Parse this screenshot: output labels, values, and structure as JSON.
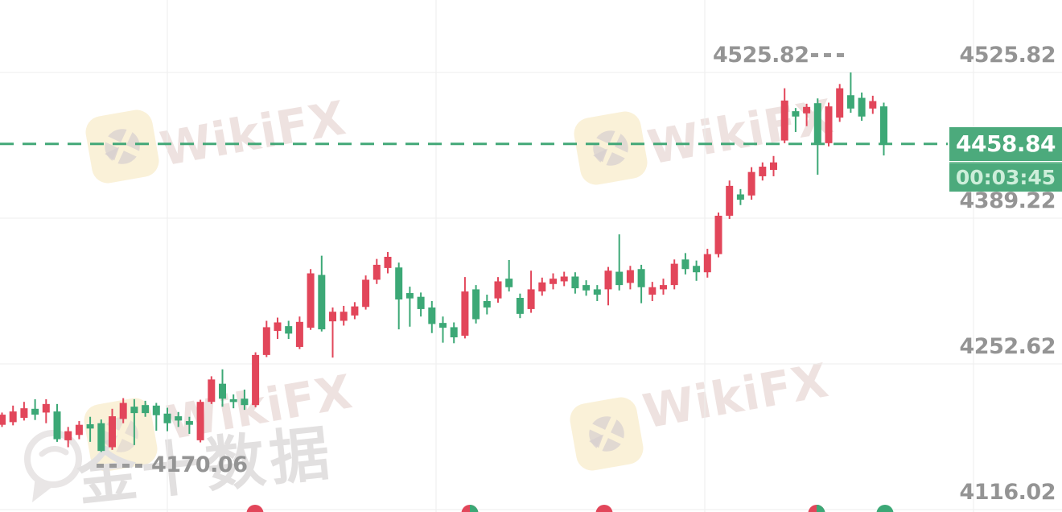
{
  "chart_data": {
    "type": "candlestick",
    "title": "",
    "y_axis": {
      "tick_labels": [
        "4525.82",
        "4389.22",
        "4252.62",
        "4116.02"
      ],
      "tick_prices": [
        4525.82,
        4389.22,
        4252.62,
        4116.02
      ]
    },
    "ylim": [
      4116.02,
      4525.82
    ],
    "grid": true,
    "current_price": {
      "value": "4458.84",
      "price": 4458.84,
      "countdown": "00:03:45"
    },
    "high_annotation": {
      "label": "4525.82",
      "price": 4525.82
    },
    "low_annotation": {
      "label": "4170.06",
      "price": 4170.06
    },
    "colors": {
      "up": "#e2465a",
      "down": "#3ca876",
      "grid": "#ededed",
      "axis_text": "#949494",
      "badge_bg": "#4caa7c",
      "badge_text": "#ffffff",
      "timer_text": "#cdeeda",
      "dashed_line": "#43a878"
    },
    "candles_format": [
      "open",
      "high",
      "low",
      "close"
    ],
    "candles": [
      [
        4195.5,
        4207,
        4193.5,
        4205
      ],
      [
        4198,
        4213.5,
        4195,
        4208
      ],
      [
        4202,
        4217,
        4199.5,
        4211
      ],
      [
        4210.5,
        4219.5,
        4200,
        4205
      ],
      [
        4207,
        4219.5,
        4197,
        4215
      ],
      [
        4208,
        4215,
        4179.5,
        4182
      ],
      [
        4181,
        4193.5,
        4174.5,
        4189.5
      ],
      [
        4186,
        4199,
        4182,
        4195.5
      ],
      [
        4196,
        4203,
        4179.5,
        4192
      ],
      [
        4197,
        4200.5,
        4170.06,
        4171
      ],
      [
        4174.5,
        4210.5,
        4172,
        4203.5
      ],
      [
        4201,
        4220.5,
        4197,
        4216
      ],
      [
        4212.5,
        4219.5,
        4176.5,
        4206.5
      ],
      [
        4214,
        4218,
        4203,
        4206.5
      ],
      [
        4213.5,
        4216,
        4190,
        4204.5
      ],
      [
        4206,
        4211.5,
        4189.5,
        4197
      ],
      [
        4203.5,
        4207.5,
        4193.5,
        4199.5
      ],
      [
        4199,
        4203,
        4187,
        4195.5
      ],
      [
        4181,
        4219,
        4179,
        4217
      ],
      [
        4217,
        4241,
        4215,
        4238
      ],
      [
        4234,
        4247.5,
        4212.5,
        4220
      ],
      [
        4219.5,
        4224,
        4211,
        4217
      ],
      [
        4220,
        4228.5,
        4209.5,
        4214
      ],
      [
        4214,
        4263.5,
        4212,
        4261
      ],
      [
        4261,
        4293,
        4259,
        4287
      ],
      [
        4283.5,
        4296,
        4276,
        4291.5
      ],
      [
        4288,
        4293,
        4276,
        4281
      ],
      [
        4268.5,
        4297,
        4266.5,
        4292
      ],
      [
        4286.5,
        4341.5,
        4284.5,
        4337.5
      ],
      [
        4336,
        4354,
        4283,
        4285
      ],
      [
        4292.5,
        4305.5,
        4258.5,
        4301.5
      ],
      [
        4293,
        4307,
        4288.5,
        4301.5
      ],
      [
        4298,
        4310.5,
        4294.5,
        4306.5
      ],
      [
        4306,
        4335.5,
        4303.5,
        4331.5
      ],
      [
        4331.5,
        4351,
        4327.5,
        4345.5
      ],
      [
        4342.5,
        4357.5,
        4337.5,
        4353
      ],
      [
        4343,
        4347.5,
        4285,
        4313
      ],
      [
        4319,
        4325,
        4287.5,
        4314
      ],
      [
        4315.5,
        4319.5,
        4297,
        4304
      ],
      [
        4305.5,
        4311.5,
        4281.5,
        4290
      ],
      [
        4291,
        4297,
        4272.5,
        4286.5
      ],
      [
        4287,
        4291.5,
        4272,
        4277.5
      ],
      [
        4279,
        4334,
        4276.5,
        4320.5
      ],
      [
        4322.5,
        4326.5,
        4290.5,
        4294.5
      ],
      [
        4311.5,
        4317.5,
        4299,
        4305.5
      ],
      [
        4314,
        4334,
        4310,
        4330
      ],
      [
        4332.5,
        4350,
        4320.5,
        4324.5
      ],
      [
        4314.5,
        4318.5,
        4295.5,
        4299.5
      ],
      [
        4304,
        4340,
        4300.5,
        4322.5
      ],
      [
        4320.5,
        4333.5,
        4316.5,
        4329
      ],
      [
        4327.5,
        4337.5,
        4322.5,
        4332.5
      ],
      [
        4330,
        4339,
        4325.5,
        4334.5
      ],
      [
        4334.5,
        4338.5,
        4318.5,
        4323.5
      ],
      [
        4326.5,
        4331,
        4316.5,
        4321.5
      ],
      [
        4322.5,
        4326.5,
        4311.5,
        4317.5
      ],
      [
        4322.5,
        4343.5,
        4307.5,
        4340
      ],
      [
        4339,
        4374,
        4321.5,
        4326.5
      ],
      [
        4328.5,
        4344.5,
        4322.5,
        4340.5
      ],
      [
        4341.5,
        4345.5,
        4309.5,
        4324.5
      ],
      [
        4317.5,
        4329.5,
        4311.5,
        4324.5
      ],
      [
        4322.5,
        4332.5,
        4317.5,
        4326.5
      ],
      [
        4326.5,
        4350.5,
        4322.5,
        4346.5
      ],
      [
        4350.5,
        4356.5,
        4336.5,
        4341.5
      ],
      [
        4344.5,
        4349.5,
        4330.5,
        4338.5
      ],
      [
        4338.5,
        4360.5,
        4333.5,
        4355.5
      ],
      [
        4355.5,
        4394.5,
        4352.5,
        4391.5
      ],
      [
        4391.5,
        4424.5,
        4388.5,
        4419.5
      ],
      [
        4411.5,
        4416.5,
        4401.5,
        4406.5
      ],
      [
        4410.5,
        4437,
        4406.5,
        4432.5
      ],
      [
        4428.5,
        4441.5,
        4424.5,
        4437.5
      ],
      [
        4434.5,
        4447.5,
        4428.5,
        4441.5
      ],
      [
        4462,
        4511,
        4459.5,
        4499.5
      ],
      [
        4489.5,
        4492.5,
        4470,
        4484.5
      ],
      [
        4487.5,
        4496.5,
        4475.5,
        4493.5
      ],
      [
        4497,
        4501.5,
        4430,
        4459.5
      ],
      [
        4459.5,
        4497.5,
        4456.5,
        4494
      ],
      [
        4483.5,
        4515,
        4479.5,
        4511
      ],
      [
        4504.5,
        4525.82,
        4488,
        4492
      ],
      [
        4502,
        4507,
        4480.5,
        4484.5
      ],
      [
        4492,
        4504,
        4487,
        4499
      ],
      [
        4494,
        4497.5,
        4448,
        4458.84
      ]
    ],
    "event_dots": [
      {
        "x": 317,
        "colors": [
          "up"
        ]
      },
      {
        "x": 584,
        "colors": [
          "up",
          "down"
        ]
      },
      {
        "x": 751,
        "colors": [
          "up"
        ]
      },
      {
        "x": 1015,
        "colors": [
          "up",
          "down"
        ]
      },
      {
        "x": 1100,
        "colors": [
          "down"
        ]
      }
    ]
  },
  "watermarks": {
    "brand": "WikiFX",
    "cn_brand": "金十数据"
  }
}
